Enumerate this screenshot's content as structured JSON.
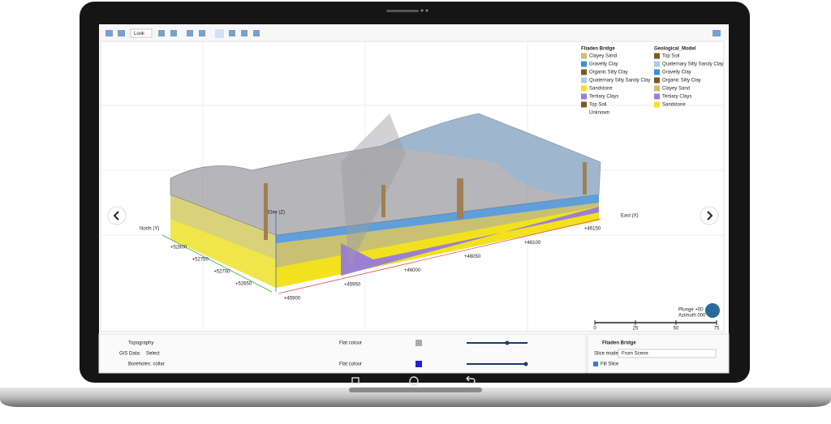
{
  "toolbar": {
    "view_mode": "Look"
  },
  "legends": [
    {
      "title": "Fliaden Bridge",
      "items": [
        {
          "label": "Clayey Sand",
          "color": "#c9c072"
        },
        {
          "label": "Gravelly Clay",
          "color": "#3b8fd9"
        },
        {
          "label": "Organic Silty Clay",
          "color": "#7b5a1c"
        },
        {
          "label": "Quaternary Silty Sandy Clay",
          "color": "#a9cde9"
        },
        {
          "label": "Sandstone",
          "color": "#f2e21e"
        },
        {
          "label": "Tertiary Clays",
          "color": "#9b80d2"
        },
        {
          "label": "Top Soil",
          "color": "#7b5a1c"
        },
        {
          "label": "Unknown",
          "color": null
        }
      ]
    },
    {
      "title": "Geological_Model",
      "items": [
        {
          "label": "Top Soil",
          "color": "#7b5a1c"
        },
        {
          "label": "Quaternary Silty Sandy Clay",
          "color": "#a9cde9"
        },
        {
          "label": "Gravelly Clay",
          "color": "#3b8fd9"
        },
        {
          "label": "Organic Silty Clay",
          "color": "#7b5a1c"
        },
        {
          "label": "Clayey Sand",
          "color": "#c9c072"
        },
        {
          "label": "Tertiary Clays",
          "color": "#9b80d2"
        },
        {
          "label": "Sandstone",
          "color": "#f2e21e"
        }
      ]
    }
  ],
  "axes": {
    "north": "North (Y)",
    "east": "East (X)",
    "elev": "Elev (Z)",
    "east_ticks": [
      "+45900",
      "+45950",
      "+46000",
      "+46050",
      "+46100",
      "+46150"
    ],
    "north_ticks": [
      "+52650",
      "+52700",
      "+52750",
      "+52800"
    ]
  },
  "scale_bar": {
    "ticks": [
      "0",
      "25",
      "50",
      "75"
    ]
  },
  "orientation": {
    "plunge": "Plunge +00",
    "azimuth": "Azimuth 000"
  },
  "layers": [
    {
      "name": "Topography",
      "style": "Flat colour"
    },
    {
      "name": "Boreholes: collar",
      "style": "Flat colour"
    }
  ],
  "gis": {
    "label": "GIS Data:",
    "value": "Select"
  },
  "slice_panel": {
    "title": "Fliaden Bridge",
    "mode_label": "Slice mode:",
    "mode_value": "From Scene",
    "fill": "Fill Slice"
  }
}
